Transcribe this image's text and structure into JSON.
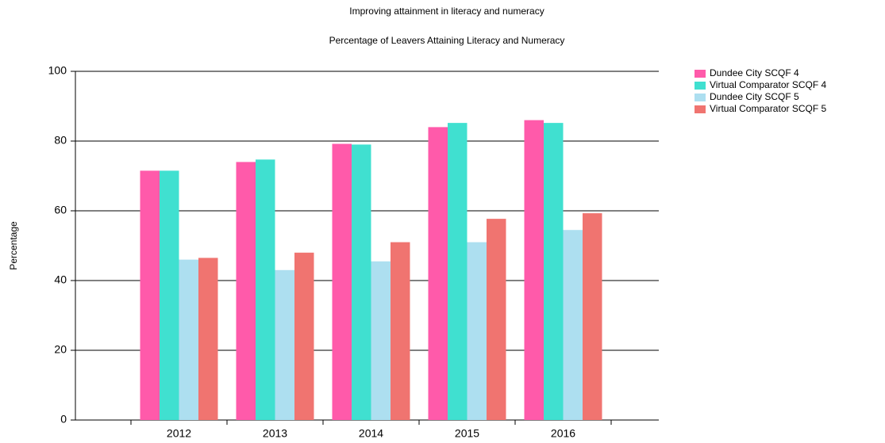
{
  "chart_data": {
    "type": "bar",
    "title": "Improving attainment in literacy and numeracy",
    "subtitle": "Percentage of Leavers Attaining Literacy and Numeracy",
    "y_label": "Percentage",
    "categories": [
      "2012",
      "2013",
      "2014",
      "2015",
      "2016"
    ],
    "series": [
      {
        "name": "Dundee City SCQF 4",
        "color": "#ff5aaa",
        "values": [
          71.5,
          74,
          79.2,
          84,
          86
        ]
      },
      {
        "name": "Virtual Comparator SCQF 4",
        "color": "#40e0d0",
        "values": [
          71.5,
          74.7,
          79,
          85.2,
          85.2
        ]
      },
      {
        "name": "Dundee City SCQF 5",
        "color": "#addff0",
        "values": [
          46,
          43,
          45.5,
          51,
          54.5
        ]
      },
      {
        "name": "Virtual Comparator SCQF 5",
        "color": "#f07470",
        "values": [
          46.5,
          48,
          51,
          57.7,
          59.3
        ]
      }
    ],
    "ylim": [
      0,
      100
    ],
    "yticks": [
      0,
      20,
      40,
      60,
      80,
      100
    ],
    "grid": true
  }
}
